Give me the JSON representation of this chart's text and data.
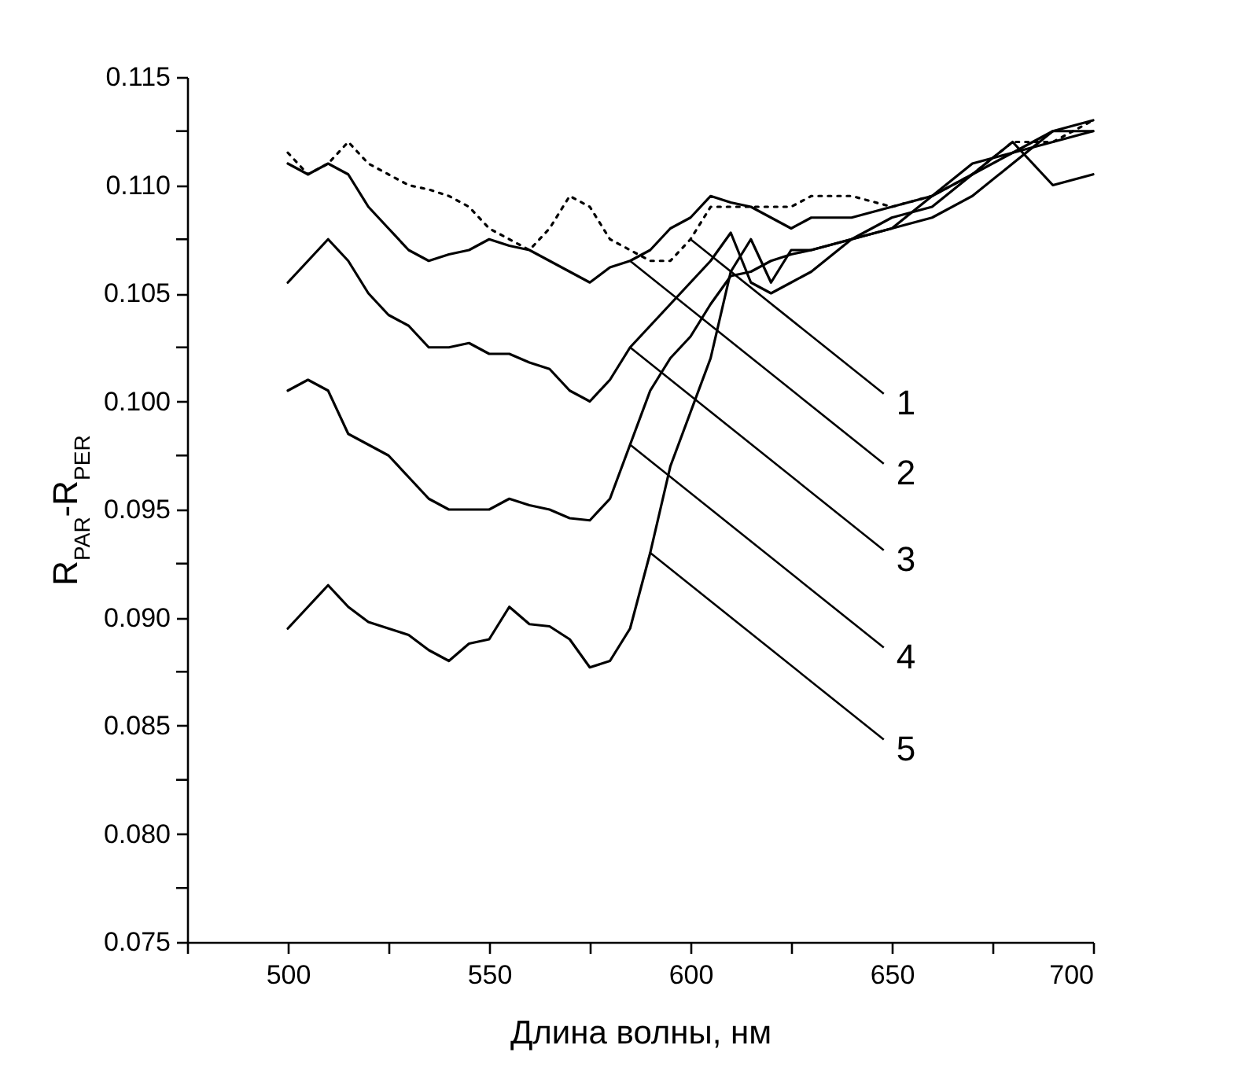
{
  "chart_data": {
    "type": "line",
    "xlabel": "Длина волны, нм",
    "ylabel": "R$_{PAR}$-R$_{PER}$",
    "xlim": [
      475,
      700
    ],
    "ylim": [
      0.075,
      0.115
    ],
    "xticks": [
      {
        "value": 475,
        "label": null
      },
      500,
      {
        "value": 525,
        "label": null
      },
      550,
      {
        "value": 575,
        "label": null
      },
      600,
      {
        "value": 625,
        "label": null
      },
      650,
      {
        "value": 675,
        "label": null
      },
      700
    ],
    "yticks": [
      {
        "value": 0.075,
        "label": "0.075"
      },
      {
        "value": 0.0775,
        "label": null
      },
      {
        "value": 0.08,
        "label": "0.080"
      },
      {
        "value": 0.0825,
        "label": null
      },
      {
        "value": 0.085,
        "label": "0.085"
      },
      {
        "value": 0.0875,
        "label": null
      },
      {
        "value": 0.09,
        "label": "0.090"
      },
      {
        "value": 0.0925,
        "label": null
      },
      {
        "value": 0.095,
        "label": "0.095"
      },
      {
        "value": 0.0975,
        "label": null
      },
      {
        "value": 0.1,
        "label": "0.100"
      },
      {
        "value": 0.1025,
        "label": null
      },
      {
        "value": 0.105,
        "label": "0.105"
      },
      {
        "value": 0.1075,
        "label": null
      },
      {
        "value": 0.11,
        "label": "0.110"
      },
      {
        "value": 0.1125,
        "label": null
      },
      {
        "value": 0.115,
        "label": "0.115"
      }
    ],
    "grid": false,
    "x": [
      500,
      505,
      510,
      515,
      520,
      525,
      530,
      535,
      540,
      545,
      550,
      555,
      560,
      565,
      570,
      575,
      580,
      585,
      590,
      595,
      600,
      605,
      610,
      615,
      620,
      625,
      630,
      640,
      650,
      660,
      670,
      680,
      690,
      700
    ],
    "series": [
      {
        "color": "#000000",
        "line_style": "dotted",
        "values": [
          0.1115,
          0.1105,
          0.111,
          0.112,
          0.111,
          0.1105,
          0.11,
          0.1098,
          0.1095,
          0.109,
          0.108,
          0.1075,
          0.107,
          0.108,
          0.1095,
          0.109,
          0.1075,
          0.107,
          0.1065,
          0.1065,
          0.1075,
          0.109,
          0.109,
          0.109,
          0.109,
          0.109,
          0.1095,
          0.1095,
          0.109,
          0.1095,
          0.1105,
          0.112,
          0.112,
          0.113
        ]
      },
      {
        "color": "#000000",
        "line_style": "solid",
        "values": [
          0.111,
          0.1105,
          0.111,
          0.1105,
          0.109,
          0.108,
          0.107,
          0.1065,
          0.1068,
          0.107,
          0.1075,
          0.1072,
          0.107,
          0.1065,
          0.106,
          0.1055,
          0.1062,
          0.1065,
          0.107,
          0.108,
          0.1085,
          0.1095,
          0.1092,
          0.109,
          0.1085,
          0.108,
          0.1085,
          0.1085,
          0.109,
          0.1095,
          0.1105,
          0.112,
          0.11,
          0.1105
        ]
      },
      {
        "color": "#000000",
        "line_style": "solid",
        "values": [
          0.1055,
          0.1065,
          0.1075,
          0.1065,
          0.105,
          0.104,
          0.1035,
          0.1025,
          0.1025,
          0.1027,
          0.1022,
          0.1022,
          0.1018,
          0.1015,
          0.1005,
          0.1,
          0.101,
          0.1025,
          0.1035,
          0.1045,
          0.1055,
          0.1065,
          0.1078,
          0.1055,
          0.105,
          0.1055,
          0.106,
          0.1075,
          0.1085,
          0.109,
          0.1105,
          0.1115,
          0.1125,
          0.1125
        ]
      },
      {
        "color": "#000000",
        "line_style": "solid",
        "values": [
          0.1005,
          0.101,
          0.1005,
          0.0985,
          0.098,
          0.0975,
          0.0965,
          0.0955,
          0.095,
          0.095,
          0.095,
          0.0955,
          0.0952,
          0.095,
          0.0946,
          0.0945,
          0.0955,
          0.098,
          0.1005,
          0.102,
          0.103,
          0.1045,
          0.1058,
          0.106,
          0.1065,
          0.1068,
          0.107,
          0.1075,
          0.108,
          0.1085,
          0.1095,
          0.111,
          0.1125,
          0.113
        ]
      },
      {
        "color": "#000000",
        "line_style": "solid",
        "values": [
          0.0895,
          0.0905,
          0.0915,
          0.0905,
          0.0898,
          0.0895,
          0.0892,
          0.0885,
          0.088,
          0.0888,
          0.089,
          0.0905,
          0.0897,
          0.0896,
          0.089,
          0.0877,
          0.088,
          0.0895,
          0.093,
          0.097,
          0.0995,
          0.102,
          0.106,
          0.1075,
          0.1055,
          0.107,
          0.107,
          0.1075,
          0.108,
          0.1095,
          0.111,
          0.1115,
          0.112,
          0.1125
        ]
      }
    ],
    "annotations": [
      {
        "text": "1",
        "x": 600,
        "y": 0.1075
      },
      {
        "text": "2",
        "x": 585,
        "y": 0.1065
      },
      {
        "text": "3",
        "x": 585,
        "y": 0.1025
      },
      {
        "text": "4",
        "x": 585,
        "y": 0.098
      },
      {
        "text": "5",
        "x": 590,
        "y": 0.093
      }
    ]
  }
}
